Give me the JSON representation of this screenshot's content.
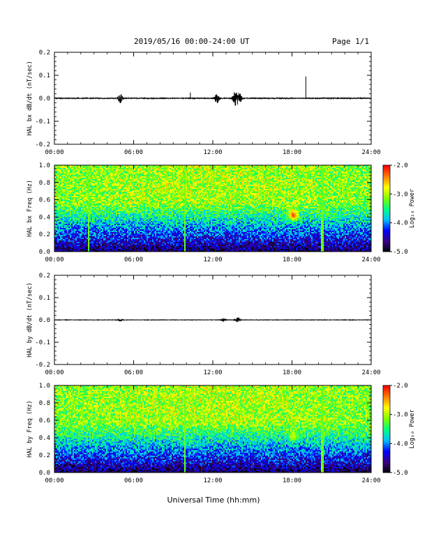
{
  "header": {
    "title": "2019/05/16  00:00-24:00 UT",
    "page": "Page 1/1"
  },
  "xlabel": "Universal Time (hh:mm)",
  "x_ticks": [
    "00:00",
    "06:00",
    "12:00",
    "18:00",
    "24:00"
  ],
  "colors": {
    "colormap": [
      "#000000",
      "#3a0080",
      "#0000ff",
      "#00bfff",
      "#00ff80",
      "#80ff00",
      "#ffff00",
      "#ff8000",
      "#ff0000"
    ]
  },
  "chart_data": [
    {
      "type": "line",
      "ylabel": "HAL bx dB/dt (nT/sec)",
      "x_range_hours": [
        0,
        24
      ],
      "ylim": [
        -0.2,
        0.2
      ],
      "y_ticks": [
        "0.2",
        "0.1",
        "0.0",
        "-0.1",
        "-0.2"
      ],
      "baseline_noise": 0.002,
      "bursts": [
        {
          "t": 5.0,
          "amp": 0.02
        },
        {
          "t": 12.3,
          "amp": 0.02
        },
        {
          "t": 13.7,
          "amp": 0.03
        },
        {
          "t": 14.0,
          "amp": 0.025
        }
      ],
      "spikes": [
        {
          "t": 10.3,
          "v": 0.025
        },
        {
          "t": 19.05,
          "v": 0.095
        }
      ]
    },
    {
      "type": "heatmap",
      "ylabel": "HAL bx Freq (Hz)",
      "x_range_hours": [
        0,
        24
      ],
      "ylim": [
        0.0,
        1.0
      ],
      "y_ticks": [
        "1.0",
        "0.8",
        "0.6",
        "0.4",
        "0.2",
        "0.0"
      ],
      "colorbar": {
        "label": "Log₁₀ Power",
        "range": [
          -5.0,
          -2.0
        ],
        "ticks": [
          "-2.0",
          "-3.0",
          "-4.0",
          "-5.0"
        ]
      },
      "hotspot": {
        "t": 18.1,
        "f": 0.42,
        "level": -2.2
      },
      "gap_hours": [
        2.6,
        9.9,
        20.3
      ]
    },
    {
      "type": "line",
      "ylabel": "HAL by dB/dt (nT/sec)",
      "x_range_hours": [
        0,
        24
      ],
      "ylim": [
        -0.2,
        0.2
      ],
      "y_ticks": [
        "0.2",
        "0.1",
        "0.0",
        "-0.1",
        "-0.2"
      ],
      "baseline_noise": 0.001,
      "bursts": [
        {
          "t": 5.0,
          "amp": 0.006
        },
        {
          "t": 12.8,
          "amp": 0.008
        },
        {
          "t": 13.9,
          "amp": 0.01
        }
      ],
      "spikes": []
    },
    {
      "type": "heatmap",
      "ylabel": "HAL by Freq (Hz)",
      "x_range_hours": [
        0,
        24
      ],
      "ylim": [
        0.0,
        1.0
      ],
      "y_ticks": [
        "1.0",
        "0.8",
        "0.6",
        "0.4",
        "0.2",
        "0.0"
      ],
      "colorbar": {
        "label": "Log₁₀ Power",
        "range": [
          -5.0,
          -2.0
        ],
        "ticks": [
          "-2.0",
          "-3.0",
          "-4.0",
          "-5.0"
        ]
      },
      "hotspot": {
        "t": 18.1,
        "f": 0.42,
        "level": -2.9
      },
      "gap_hours": [
        9.9,
        20.3
      ]
    }
  ]
}
